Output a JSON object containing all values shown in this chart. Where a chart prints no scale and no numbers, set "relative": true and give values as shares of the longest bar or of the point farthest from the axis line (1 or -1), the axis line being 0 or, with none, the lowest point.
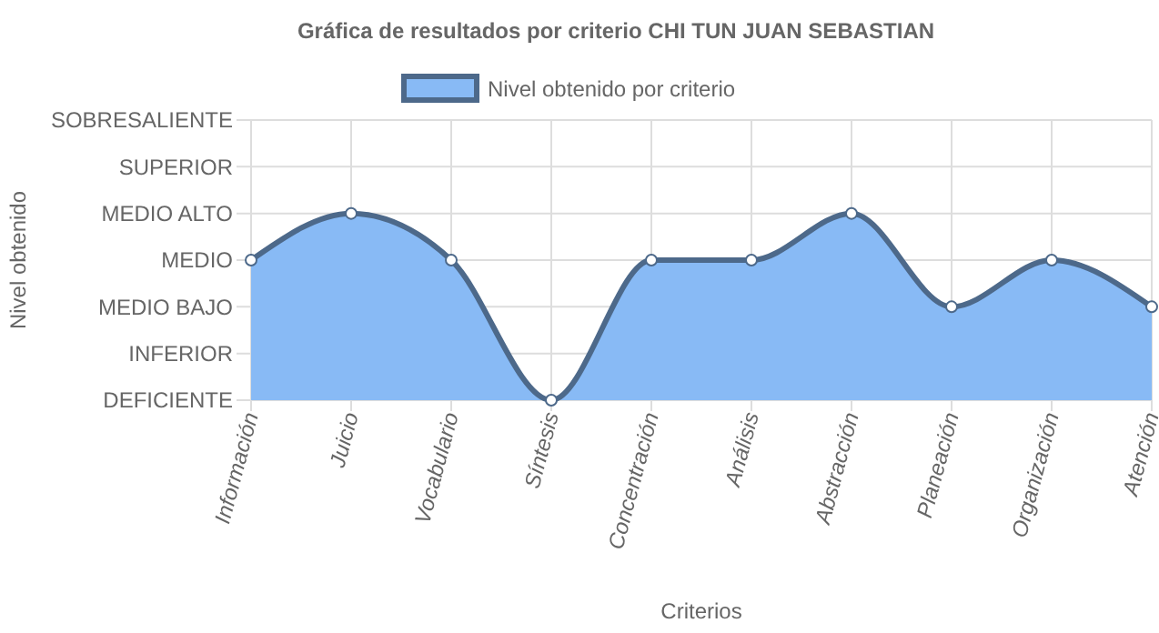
{
  "chart_data": {
    "type": "area",
    "title": "Gráfica de resultados por criterio  CHI TUN JUAN SEBASTIAN",
    "xlabel": "Criterios",
    "categories": [
      "Información",
      "Juicio",
      "Vocabulario",
      "Síntesis",
      "Concentración",
      "Análisis",
      "Abstracción",
      "Planeación",
      "Organización",
      "Atención"
    ],
    "relative": true,
    "series": [
      {
        "name": "Nivel obtenido por criterio",
        "color": "#88baf5",
        "values": [
          0.75,
          1,
          0.75,
          0,
          0.75,
          0.75,
          1,
          0.5,
          0.75,
          0.5
        ]
      }
    ],
    "annotations": [
      "Nivel obtenido",
      "SOBRESALIENTE",
      "SUPERIOR",
      "MEDIO ALTO",
      "MEDIO",
      "MEDIO BAJO",
      "INFERIOR",
      "DEFICIENTE"
    ],
    "grid": true,
    "legend": "top",
    "marker": "circle",
    "line_style": "solid"
  }
}
